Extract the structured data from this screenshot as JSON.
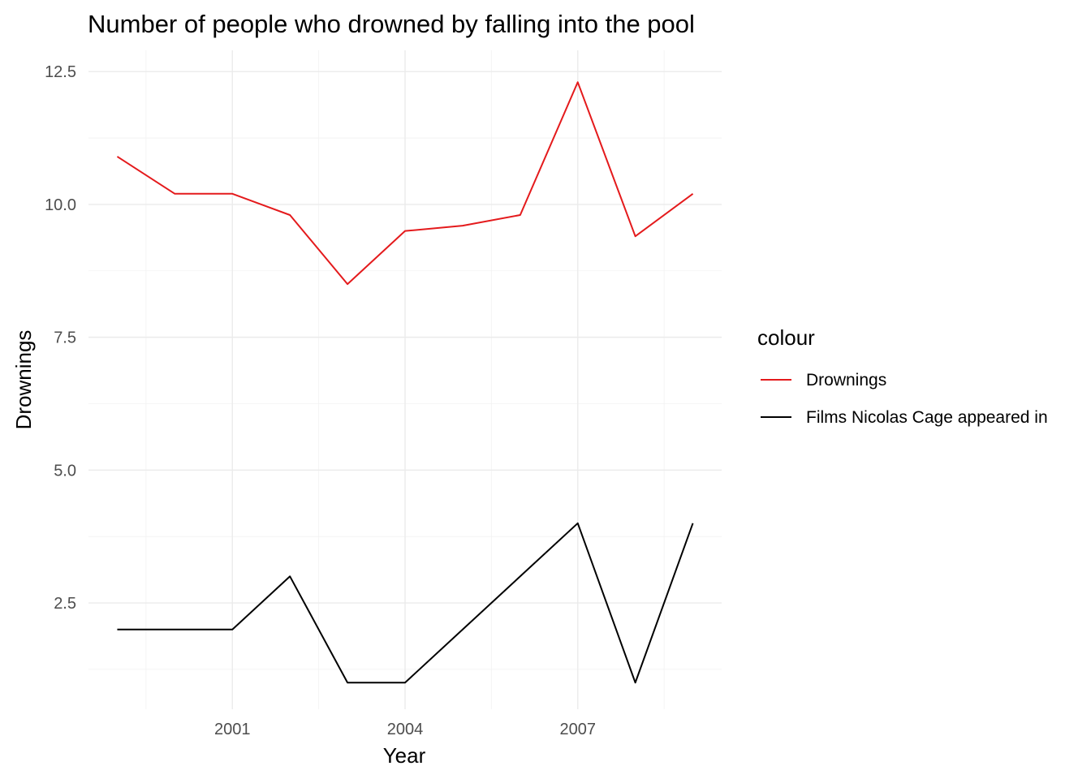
{
  "chart_data": {
    "type": "line",
    "title": "Number of people who drowned by falling into the pool",
    "xlabel": "Year",
    "ylabel": "Drownings",
    "x": [
      1999,
      2000,
      2001,
      2002,
      2003,
      2004,
      2005,
      2006,
      2007,
      2008,
      2009
    ],
    "xlim": [
      1998.5,
      2009.5
    ],
    "ylim": [
      0.5,
      12.9
    ],
    "x_ticks": [
      2001,
      2004,
      2007
    ],
    "x_tick_labels": [
      "2001",
      "2004",
      "2007"
    ],
    "x_minor_ticks": [
      1999.5,
      2002.5,
      2005.5,
      2008.5
    ],
    "y_ticks": [
      2.5,
      5.0,
      7.5,
      10.0,
      12.5
    ],
    "y_tick_labels": [
      "2.5",
      "5.0",
      "7.5",
      "10.0",
      "12.5"
    ],
    "y_minor_ticks": [
      1.25,
      3.75,
      6.25,
      8.75,
      11.25
    ],
    "grid": true,
    "legend": {
      "title": "colour",
      "position": "right"
    },
    "series": [
      {
        "name": "Drownings",
        "color": "#e41a1c",
        "values": [
          10.9,
          10.2,
          10.2,
          9.8,
          8.5,
          9.5,
          9.6,
          9.8,
          12.3,
          9.4,
          10.2
        ]
      },
      {
        "name": "Films Nicolas Cage appeared in",
        "color": "#000000",
        "values": [
          2,
          2,
          2,
          3,
          1,
          1,
          2,
          3,
          4,
          1,
          4
        ]
      }
    ]
  }
}
